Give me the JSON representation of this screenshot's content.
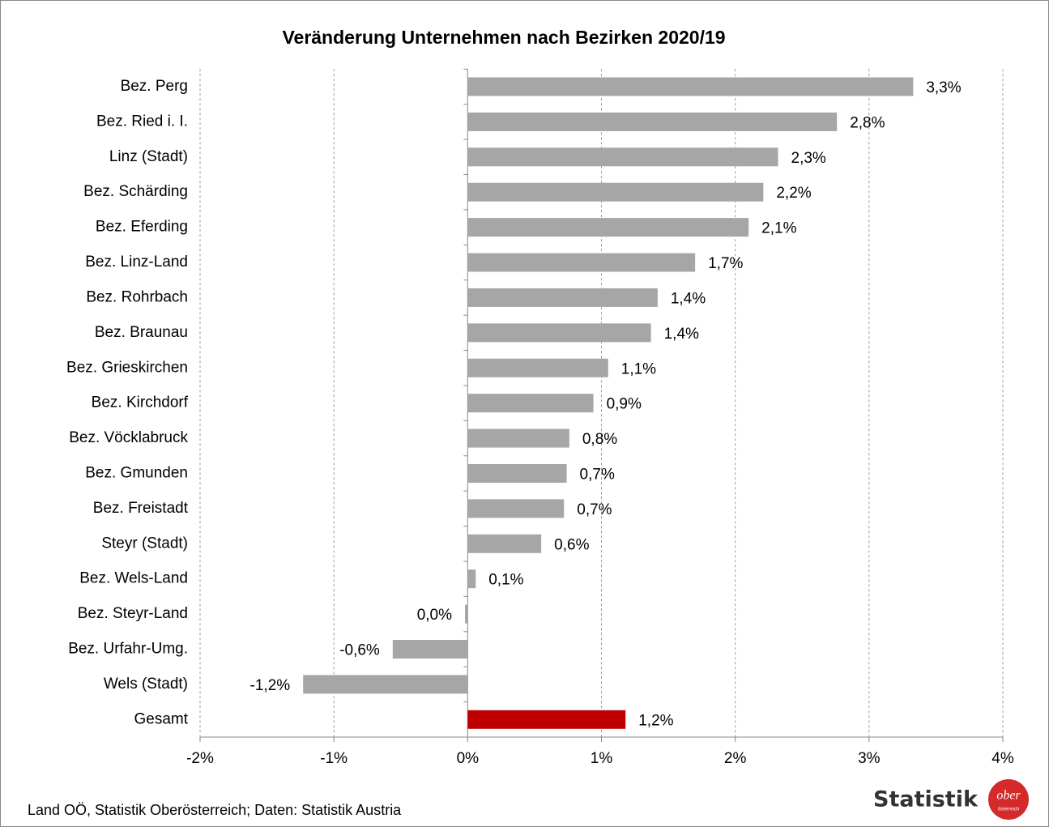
{
  "chart_data": {
    "type": "bar",
    "orientation": "horizontal",
    "title": "Veränderung Unternehmen nach Bezirken 2020/19",
    "categories": [
      "Bez. Perg",
      "Bez. Ried i. I.",
      "Linz (Stadt)",
      "Bez. Schärding",
      "Bez. Eferding",
      "Bez. Linz-Land",
      "Bez. Rohrbach",
      "Bez. Braunau",
      "Bez. Grieskirchen",
      "Bez. Kirchdorf",
      "Bez. Vöcklabruck",
      "Bez. Gmunden",
      "Bez. Freistadt",
      "Steyr (Stadt)",
      "Bez. Wels-Land",
      "Bez. Steyr-Land",
      "Bez. Urfahr-Umg.",
      "Wels (Stadt)",
      "Gesamt"
    ],
    "values": [
      3.33,
      2.76,
      2.32,
      2.21,
      2.1,
      1.7,
      1.42,
      1.37,
      1.05,
      0.94,
      0.76,
      0.74,
      0.72,
      0.55,
      0.06,
      -0.02,
      -0.56,
      -1.23,
      1.18
    ],
    "value_labels": [
      "3,3%",
      "2,8%",
      "2,3%",
      "2,2%",
      "2,1%",
      "1,7%",
      "1,4%",
      "1,4%",
      "1,1%",
      "0,9%",
      "0,8%",
      "0,7%",
      "0,7%",
      "0,6%",
      "0,1%",
      "0,0%",
      "-0,6%",
      "-1,2%",
      "1,2%"
    ],
    "colors": [
      "#a6a6a6",
      "#a6a6a6",
      "#a6a6a6",
      "#a6a6a6",
      "#a6a6a6",
      "#a6a6a6",
      "#a6a6a6",
      "#a6a6a6",
      "#a6a6a6",
      "#a6a6a6",
      "#a6a6a6",
      "#a6a6a6",
      "#a6a6a6",
      "#a6a6a6",
      "#a6a6a6",
      "#a6a6a6",
      "#a6a6a6",
      "#a6a6a6",
      "#c00000"
    ],
    "xlim": [
      -2,
      4
    ],
    "xticks": [
      {
        "value": -2,
        "label": "-2%"
      },
      {
        "value": -1,
        "label": "-1%"
      },
      {
        "value": 0,
        "label": "0%"
      },
      {
        "value": 1,
        "label": "1%"
      },
      {
        "value": 2,
        "label": "2%"
      },
      {
        "value": 3,
        "label": "3%"
      },
      {
        "value": 4,
        "label": "4%"
      }
    ],
    "grid": true,
    "source": "Land OÖ, Statistik Oberösterreich; Daten: Statistik Austria"
  },
  "logo": {
    "text": "Statistik",
    "badge": "ober",
    "badge_sub": "österreich"
  }
}
